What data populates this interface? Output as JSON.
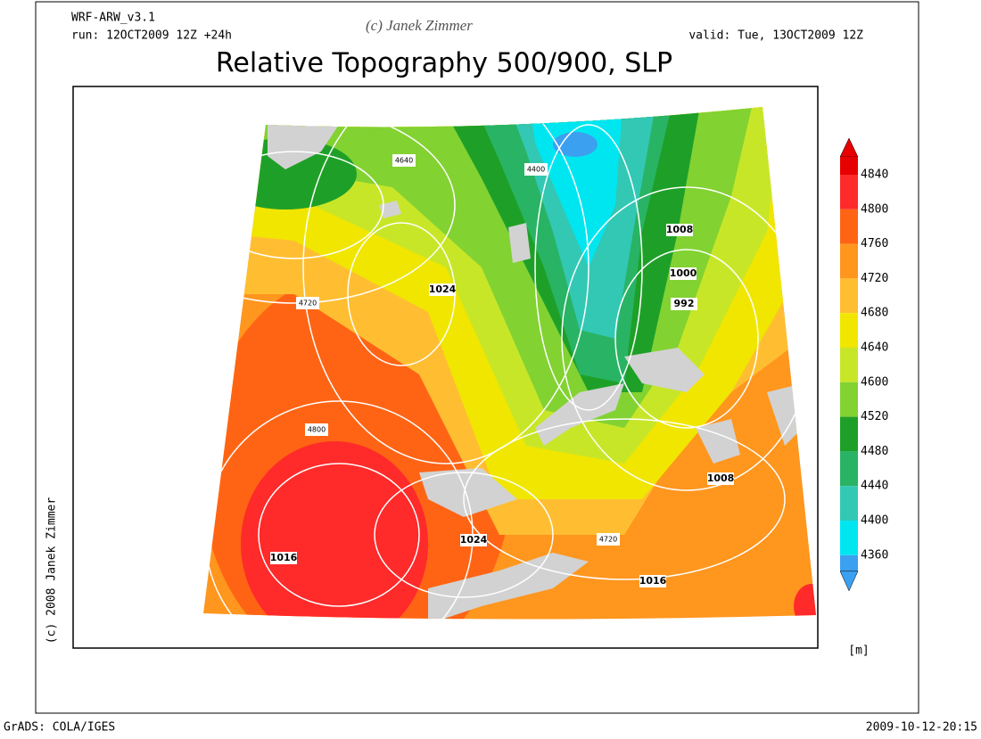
{
  "header": {
    "model": "WRF-ARW_v3.1",
    "run": "run: 12OCT2009 12Z +24h",
    "credit": "(c) Janek Zimmer",
    "valid": "valid: Tue, 13OCT2009 12Z"
  },
  "title": "Relative Topography 500/900, SLP",
  "side_credit": "(c) 2008 Janek Zimmer",
  "colorbar": {
    "levels": [
      4840,
      4800,
      4760,
      4720,
      4680,
      4640,
      4600,
      4520,
      4480,
      4440,
      4400,
      4360
    ],
    "colors": [
      "#e60000",
      "#ff2a2a",
      "#ff6414",
      "#ff961e",
      "#ffbe32",
      "#f0e600",
      "#c8e628",
      "#82d232",
      "#1ea028",
      "#28b464",
      "#32c8b4",
      "#00e6f0",
      "#3ca0f0"
    ],
    "unit": "[m]"
  },
  "map_labels": [
    4640,
    4400,
    1008,
    1000,
    992,
    1024,
    4720,
    4800,
    1016,
    1024,
    4720,
    1016,
    1008
  ],
  "footer": {
    "left": "GrADS: COLA/IGES",
    "right": "2009-10-12-20:15"
  }
}
